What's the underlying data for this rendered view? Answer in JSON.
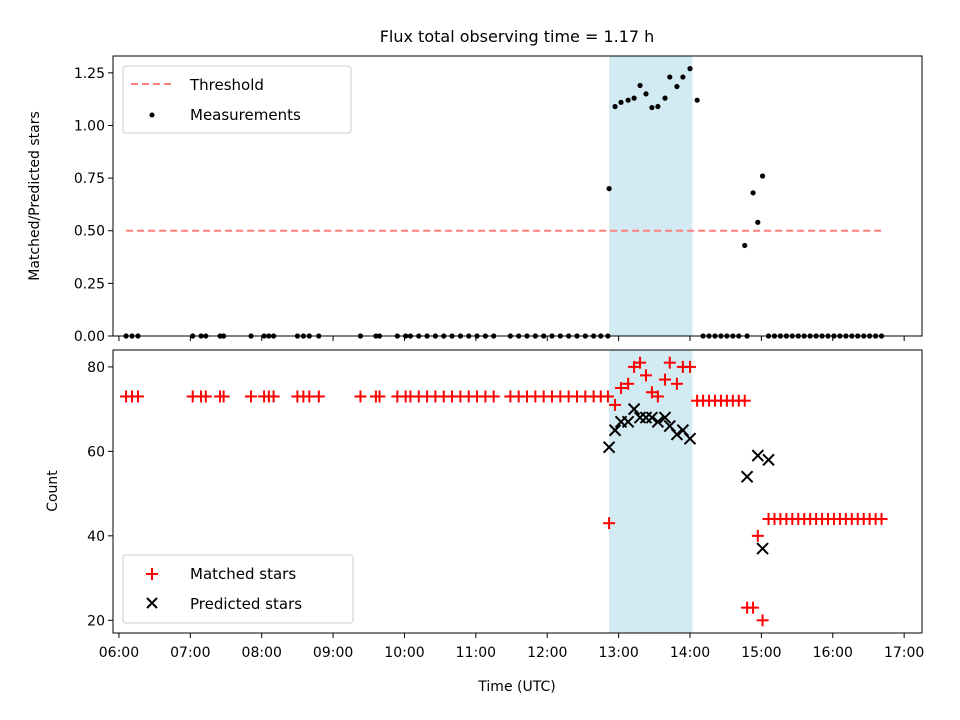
{
  "chart_data": {
    "title": "Flux total observing time = 1.17 h",
    "time_format": "HH:MM",
    "highlight_span": [
      "12:52",
      "14:02"
    ],
    "highlight_color": "#add8e6",
    "panels": [
      {
        "type": "scatter",
        "ylabel": "Matched/Predicted stars",
        "ylim": [
          0,
          1.33
        ],
        "yticks": [
          0,
          0.25,
          0.5,
          0.75,
          1.0,
          1.25
        ],
        "ytick_labels": [
          "0.00",
          "0.25",
          "0.50",
          "0.75",
          "1.00",
          "1.25"
        ],
        "legend_position": "upper left",
        "series": [
          {
            "name": "Threshold",
            "kind": "line",
            "style": "dashed",
            "color": "#ff7f7f",
            "x": [
              "06:06",
              "16:42"
            ],
            "y": [
              0.5,
              0.5
            ]
          },
          {
            "name": "Measurements",
            "kind": "dot",
            "color": "#000000",
            "x": [
              "06:06",
              "06:11",
              "06:16",
              "07:02",
              "07:09",
              "07:13",
              "07:25",
              "07:28",
              "07:51",
              "08:02",
              "08:06",
              "08:10",
              "08:30",
              "08:35",
              "08:40",
              "08:48",
              "09:23",
              "09:36",
              "09:39",
              "09:54",
              "10:01",
              "10:05",
              "10:12",
              "10:19",
              "10:26",
              "10:33",
              "10:40",
              "10:47",
              "10:54",
              "11:01",
              "11:08",
              "11:15",
              "11:29",
              "11:36",
              "11:43",
              "11:50",
              "11:57",
              "12:04",
              "12:11",
              "12:18",
              "12:25",
              "12:32",
              "12:39",
              "12:45",
              "12:51",
              "12:52",
              "12:57",
              "13:02",
              "13:08",
              "13:13",
              "13:18",
              "13:23",
              "13:28",
              "13:33",
              "13:39",
              "13:43",
              "13:49",
              "13:54",
              "14:00",
              "14:06",
              "14:11",
              "14:16",
              "14:21",
              "14:26",
              "14:31",
              "14:36",
              "14:41",
              "14:46",
              "14:48",
              "14:53",
              "14:57",
              "15:01",
              "15:06",
              "15:11",
              "15:16",
              "15:21",
              "15:26",
              "15:31",
              "15:36",
              "15:41",
              "15:46",
              "15:51",
              "15:56",
              "16:01",
              "16:06",
              "16:11",
              "16:16",
              "16:21",
              "16:26",
              "16:31",
              "16:36",
              "16:41"
            ],
            "y": [
              0,
              0,
              0,
              0,
              0,
              0,
              0,
              0,
              0,
              0,
              0,
              0,
              0,
              0,
              0,
              0,
              0,
              0,
              0,
              0,
              0,
              0,
              0,
              0,
              0,
              0,
              0,
              0,
              0,
              0,
              0,
              0,
              0,
              0,
              0,
              0,
              0,
              0,
              0,
              0,
              0,
              0,
              0,
              0,
              0,
              0.7,
              1.09,
              1.11,
              1.12,
              1.13,
              1.19,
              1.15,
              1.085,
              1.09,
              1.13,
              1.23,
              1.185,
              1.23,
              1.27,
              1.12,
              0,
              0,
              0,
              0,
              0,
              0,
              0,
              0.43,
              0,
              0.68,
              0.54,
              0.76,
              0,
              0,
              0,
              0,
              0,
              0,
              0,
              0,
              0,
              0,
              0,
              0,
              0,
              0,
              0,
              0,
              0,
              0,
              0,
              0
            ]
          }
        ]
      },
      {
        "type": "scatter",
        "ylabel": "Count",
        "xlabel": "Time (UTC)",
        "ylim": [
          17,
          84
        ],
        "yticks": [
          20,
          40,
          60,
          80
        ],
        "ytick_labels": [
          "20",
          "40",
          "60",
          "80"
        ],
        "xticks": [
          "06:00",
          "07:00",
          "08:00",
          "09:00",
          "10:00",
          "11:00",
          "12:00",
          "13:00",
          "14:00",
          "15:00",
          "16:00",
          "17:00"
        ],
        "xtick_labels": [
          "06:00",
          "07:00",
          "08:00",
          "09:00",
          "10:00",
          "11:00",
          "12:00",
          "13:00",
          "14:00",
          "15:00",
          "16:00",
          "17:00"
        ],
        "xlim": [
          "05:55",
          "17:15"
        ],
        "legend_position": "lower left",
        "series": [
          {
            "name": "Matched stars",
            "kind": "plus",
            "color": "#ff0000",
            "x": [
              "06:06",
              "06:11",
              "06:16",
              "07:02",
              "07:09",
              "07:13",
              "07:25",
              "07:28",
              "07:51",
              "08:02",
              "08:06",
              "08:10",
              "08:30",
              "08:35",
              "08:40",
              "08:48",
              "09:23",
              "09:36",
              "09:39",
              "09:54",
              "10:01",
              "10:05",
              "10:12",
              "10:19",
              "10:26",
              "10:33",
              "10:40",
              "10:47",
              "10:54",
              "11:01",
              "11:08",
              "11:15",
              "11:29",
              "11:36",
              "11:43",
              "11:50",
              "11:57",
              "12:04",
              "12:11",
              "12:18",
              "12:25",
              "12:32",
              "12:39",
              "12:45",
              "12:51",
              "12:52",
              "12:57",
              "13:02",
              "13:08",
              "13:13",
              "13:18",
              "13:23",
              "13:28",
              "13:33",
              "13:39",
              "13:43",
              "13:49",
              "13:54",
              "14:00",
              "14:06",
              "14:11",
              "14:16",
              "14:21",
              "14:26",
              "14:31",
              "14:36",
              "14:41",
              "14:46",
              "14:48",
              "14:53",
              "14:57",
              "15:01",
              "15:06",
              "15:11",
              "15:16",
              "15:21",
              "15:26",
              "15:31",
              "15:36",
              "15:41",
              "15:46",
              "15:51",
              "15:56",
              "16:01",
              "16:06",
              "16:11",
              "16:16",
              "16:21",
              "16:26",
              "16:31",
              "16:36",
              "16:41"
            ],
            "y": [
              73,
              73,
              73,
              73,
              73,
              73,
              73,
              73,
              73,
              73,
              73,
              73,
              73,
              73,
              73,
              73,
              73,
              73,
              73,
              73,
              73,
              73,
              73,
              73,
              73,
              73,
              73,
              73,
              73,
              73,
              73,
              73,
              73,
              73,
              73,
              73,
              73,
              73,
              73,
              73,
              73,
              73,
              73,
              73,
              73,
              43,
              71,
              75,
              76,
              80,
              81,
              78,
              74,
              73,
              77,
              81,
              76,
              80,
              80,
              72,
              72,
              72,
              72,
              72,
              72,
              72,
              72,
              72,
              23,
              23,
              40,
              20,
              44,
              44,
              44,
              44,
              44,
              44,
              44,
              44,
              44,
              44,
              44,
              44,
              44,
              44,
              44,
              44,
              44,
              44,
              44,
              44
            ]
          },
          {
            "name": "Predicted stars",
            "kind": "cross",
            "color": "#000000",
            "x": [
              "12:52",
              "12:57",
              "13:02",
              "13:08",
              "13:13",
              "13:18",
              "13:23",
              "13:28",
              "13:33",
              "13:39",
              "13:43",
              "13:49",
              "13:54",
              "14:00",
              "14:48",
              "14:57",
              "15:01",
              "15:06"
            ],
            "y": [
              61,
              65,
              67,
              67,
              70,
              68,
              68,
              68,
              67,
              68,
              66,
              64,
              65,
              63,
              54,
              59,
              37,
              58
            ]
          }
        ]
      }
    ]
  }
}
